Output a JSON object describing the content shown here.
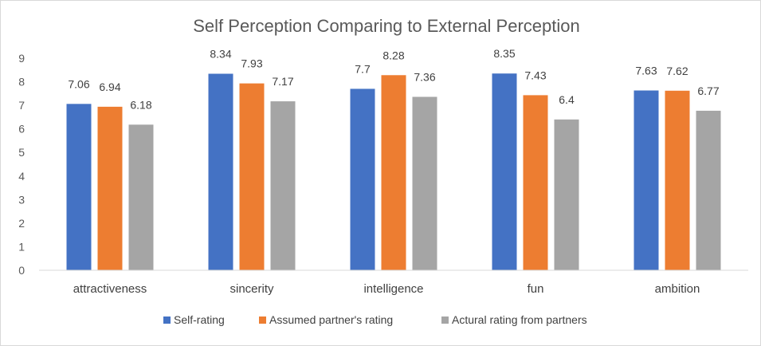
{
  "chart_data": {
    "type": "bar",
    "title": "Self Perception Comparing to External Perception",
    "xlabel": "",
    "ylabel": "",
    "categories": [
      "attractiveness",
      "sincerity",
      "intelligence",
      "fun",
      "ambition"
    ],
    "series": [
      {
        "name": "Self-rating",
        "color": "#4472C4",
        "values": [
          7.06,
          8.34,
          7.7,
          8.35,
          7.63
        ]
      },
      {
        "name": "Assumed partner's rating",
        "color": "#ED7D31",
        "values": [
          6.94,
          7.93,
          8.28,
          7.43,
          7.62
        ]
      },
      {
        "name": "Actural rating from partners",
        "color": "#A5A5A5",
        "values": [
          6.18,
          7.17,
          7.36,
          6.4,
          6.77
        ]
      }
    ],
    "ylim": [
      0,
      9
    ],
    "yticks": [
      0,
      1,
      2,
      3,
      4,
      5,
      6,
      7,
      8,
      9
    ],
    "grid": false,
    "legend_position": "bottom",
    "data_labels": true
  }
}
